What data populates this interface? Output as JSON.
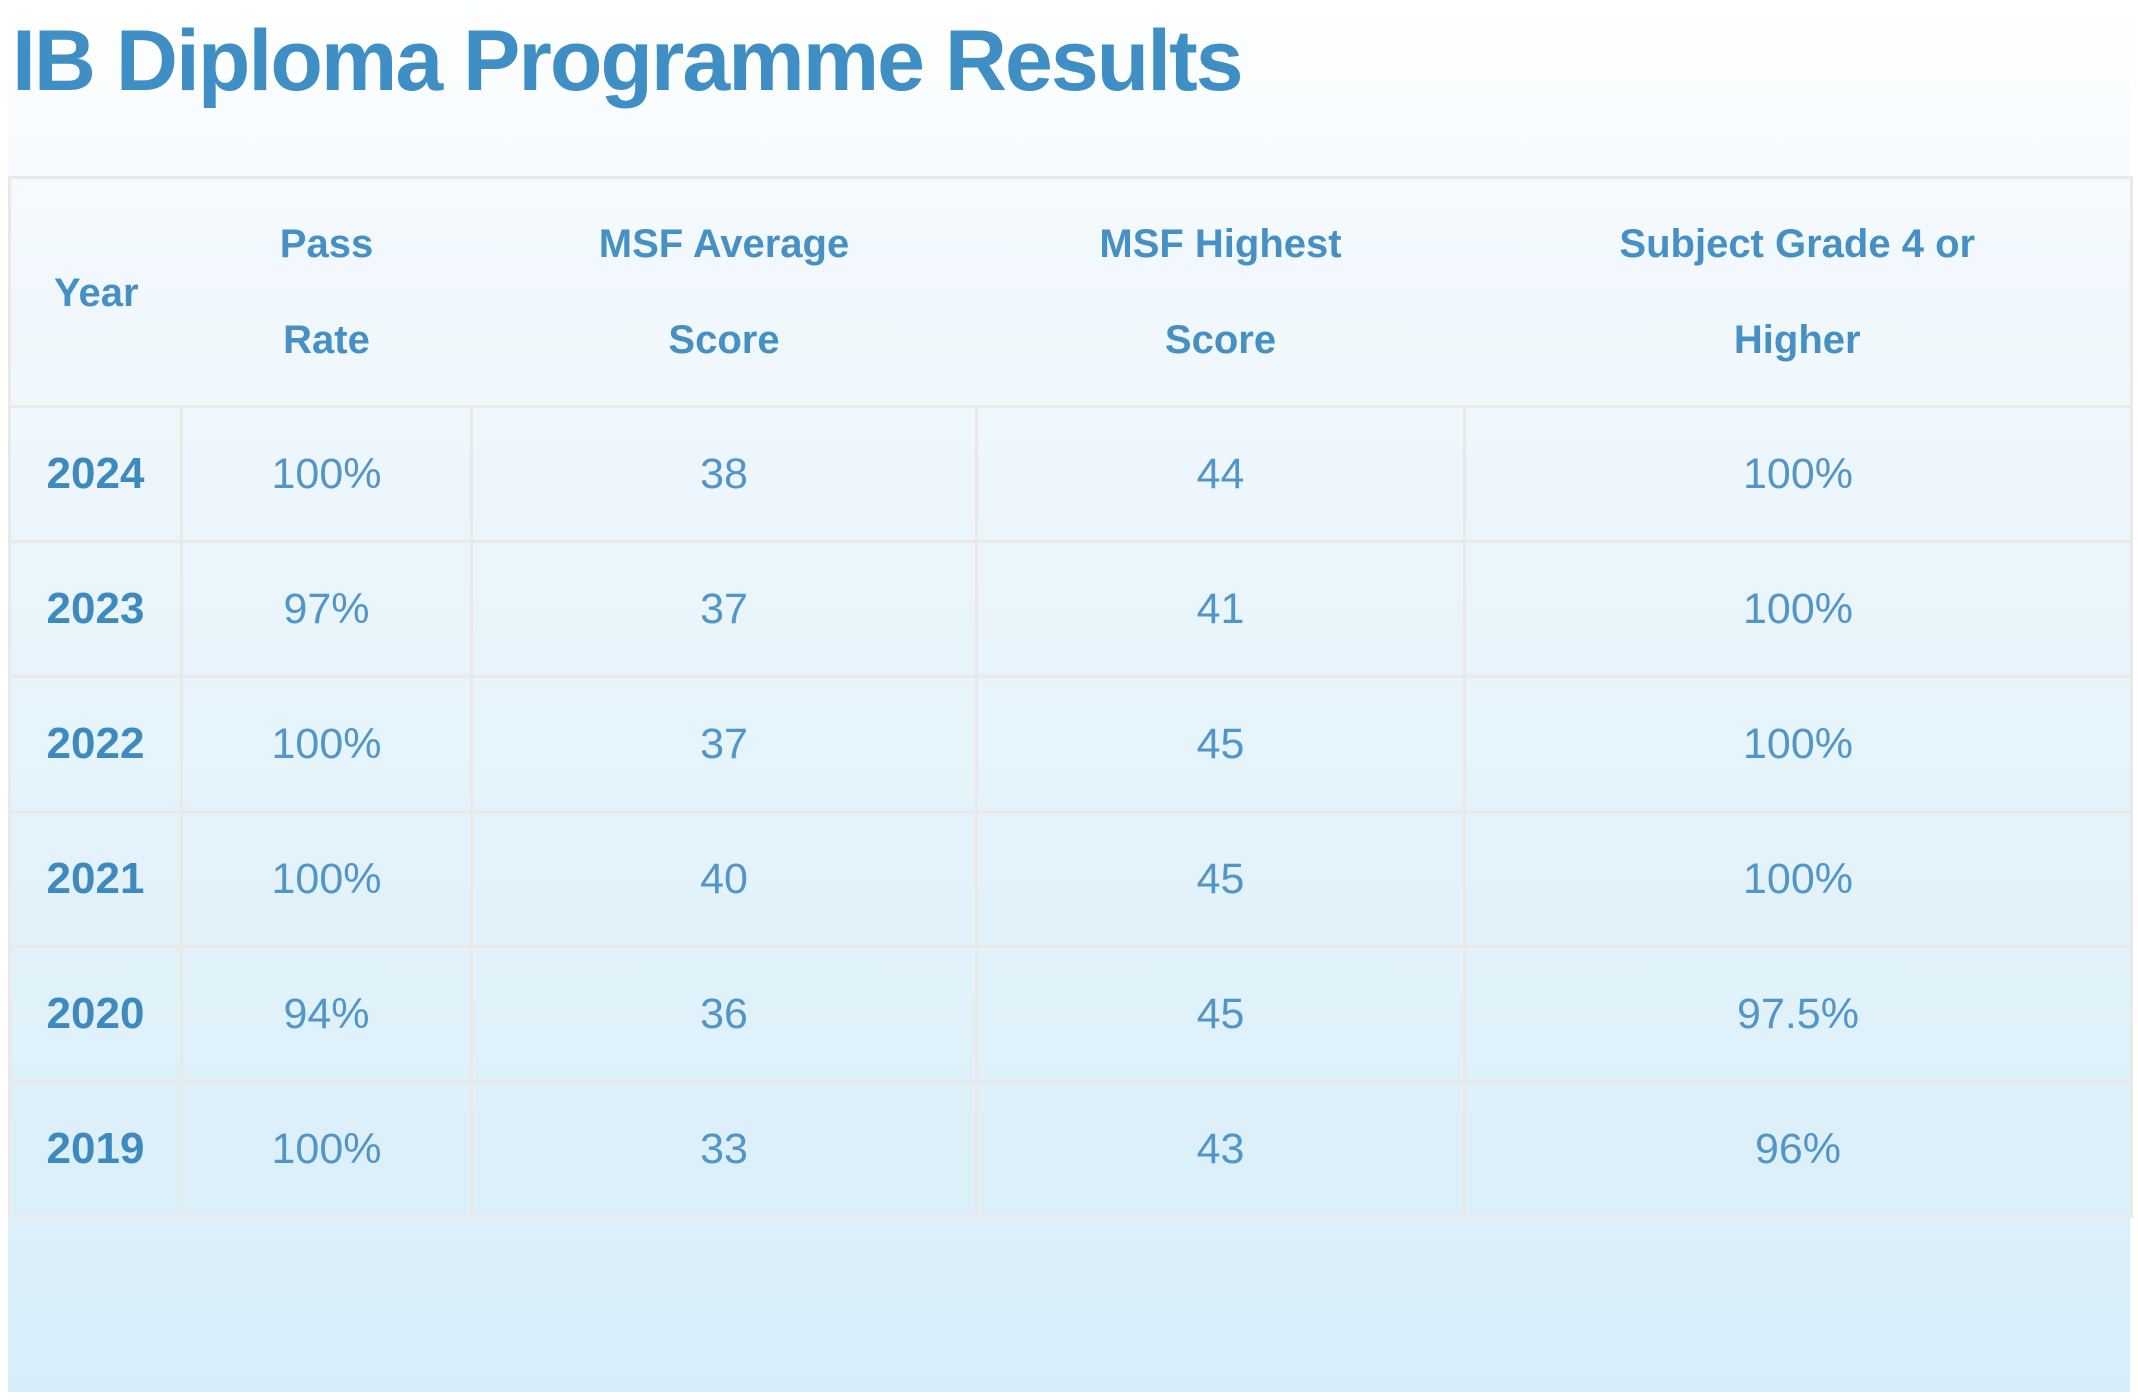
{
  "page": {
    "title": "IB Diploma Programme Results"
  },
  "colors": {
    "accent_blue": "#4292c6",
    "title_text": "#3f8fc5",
    "header_text": "#4690c4",
    "year_text": "#3e8abf",
    "cell_text": "#5295c8",
    "grid_border": "#ebe9e6",
    "background_top": "#ffffff",
    "background_bottom": "#d7eefa"
  },
  "chart_data": {
    "type": "table",
    "title": "IB Diploma Programme Results",
    "columns": [
      "Year",
      "Pass Rate",
      "MSF Average Score",
      "MSF Highest Score",
      "Subject Grade 4 or Higher"
    ],
    "rows": [
      {
        "year": "2024",
        "pass_rate": "100%",
        "msf_average_score": "38",
        "msf_highest_score": "44",
        "subject_grade_4_or_higher": "100%"
      },
      {
        "year": "2023",
        "pass_rate": "97%",
        "msf_average_score": "37",
        "msf_highest_score": "41",
        "subject_grade_4_or_higher": "100%"
      },
      {
        "year": "2022",
        "pass_rate": "100%",
        "msf_average_score": "37",
        "msf_highest_score": "45",
        "subject_grade_4_or_higher": "100%"
      },
      {
        "year": "2021",
        "pass_rate": "100%",
        "msf_average_score": "40",
        "msf_highest_score": "45",
        "subject_grade_4_or_higher": "100%"
      },
      {
        "year": "2020",
        "pass_rate": "94%",
        "msf_average_score": "36",
        "msf_highest_score": "45",
        "subject_grade_4_or_higher": "97.5%"
      },
      {
        "year": "2019",
        "pass_rate": "100%",
        "msf_average_score": "33",
        "msf_highest_score": "43",
        "subject_grade_4_or_higher": "96%"
      }
    ]
  }
}
